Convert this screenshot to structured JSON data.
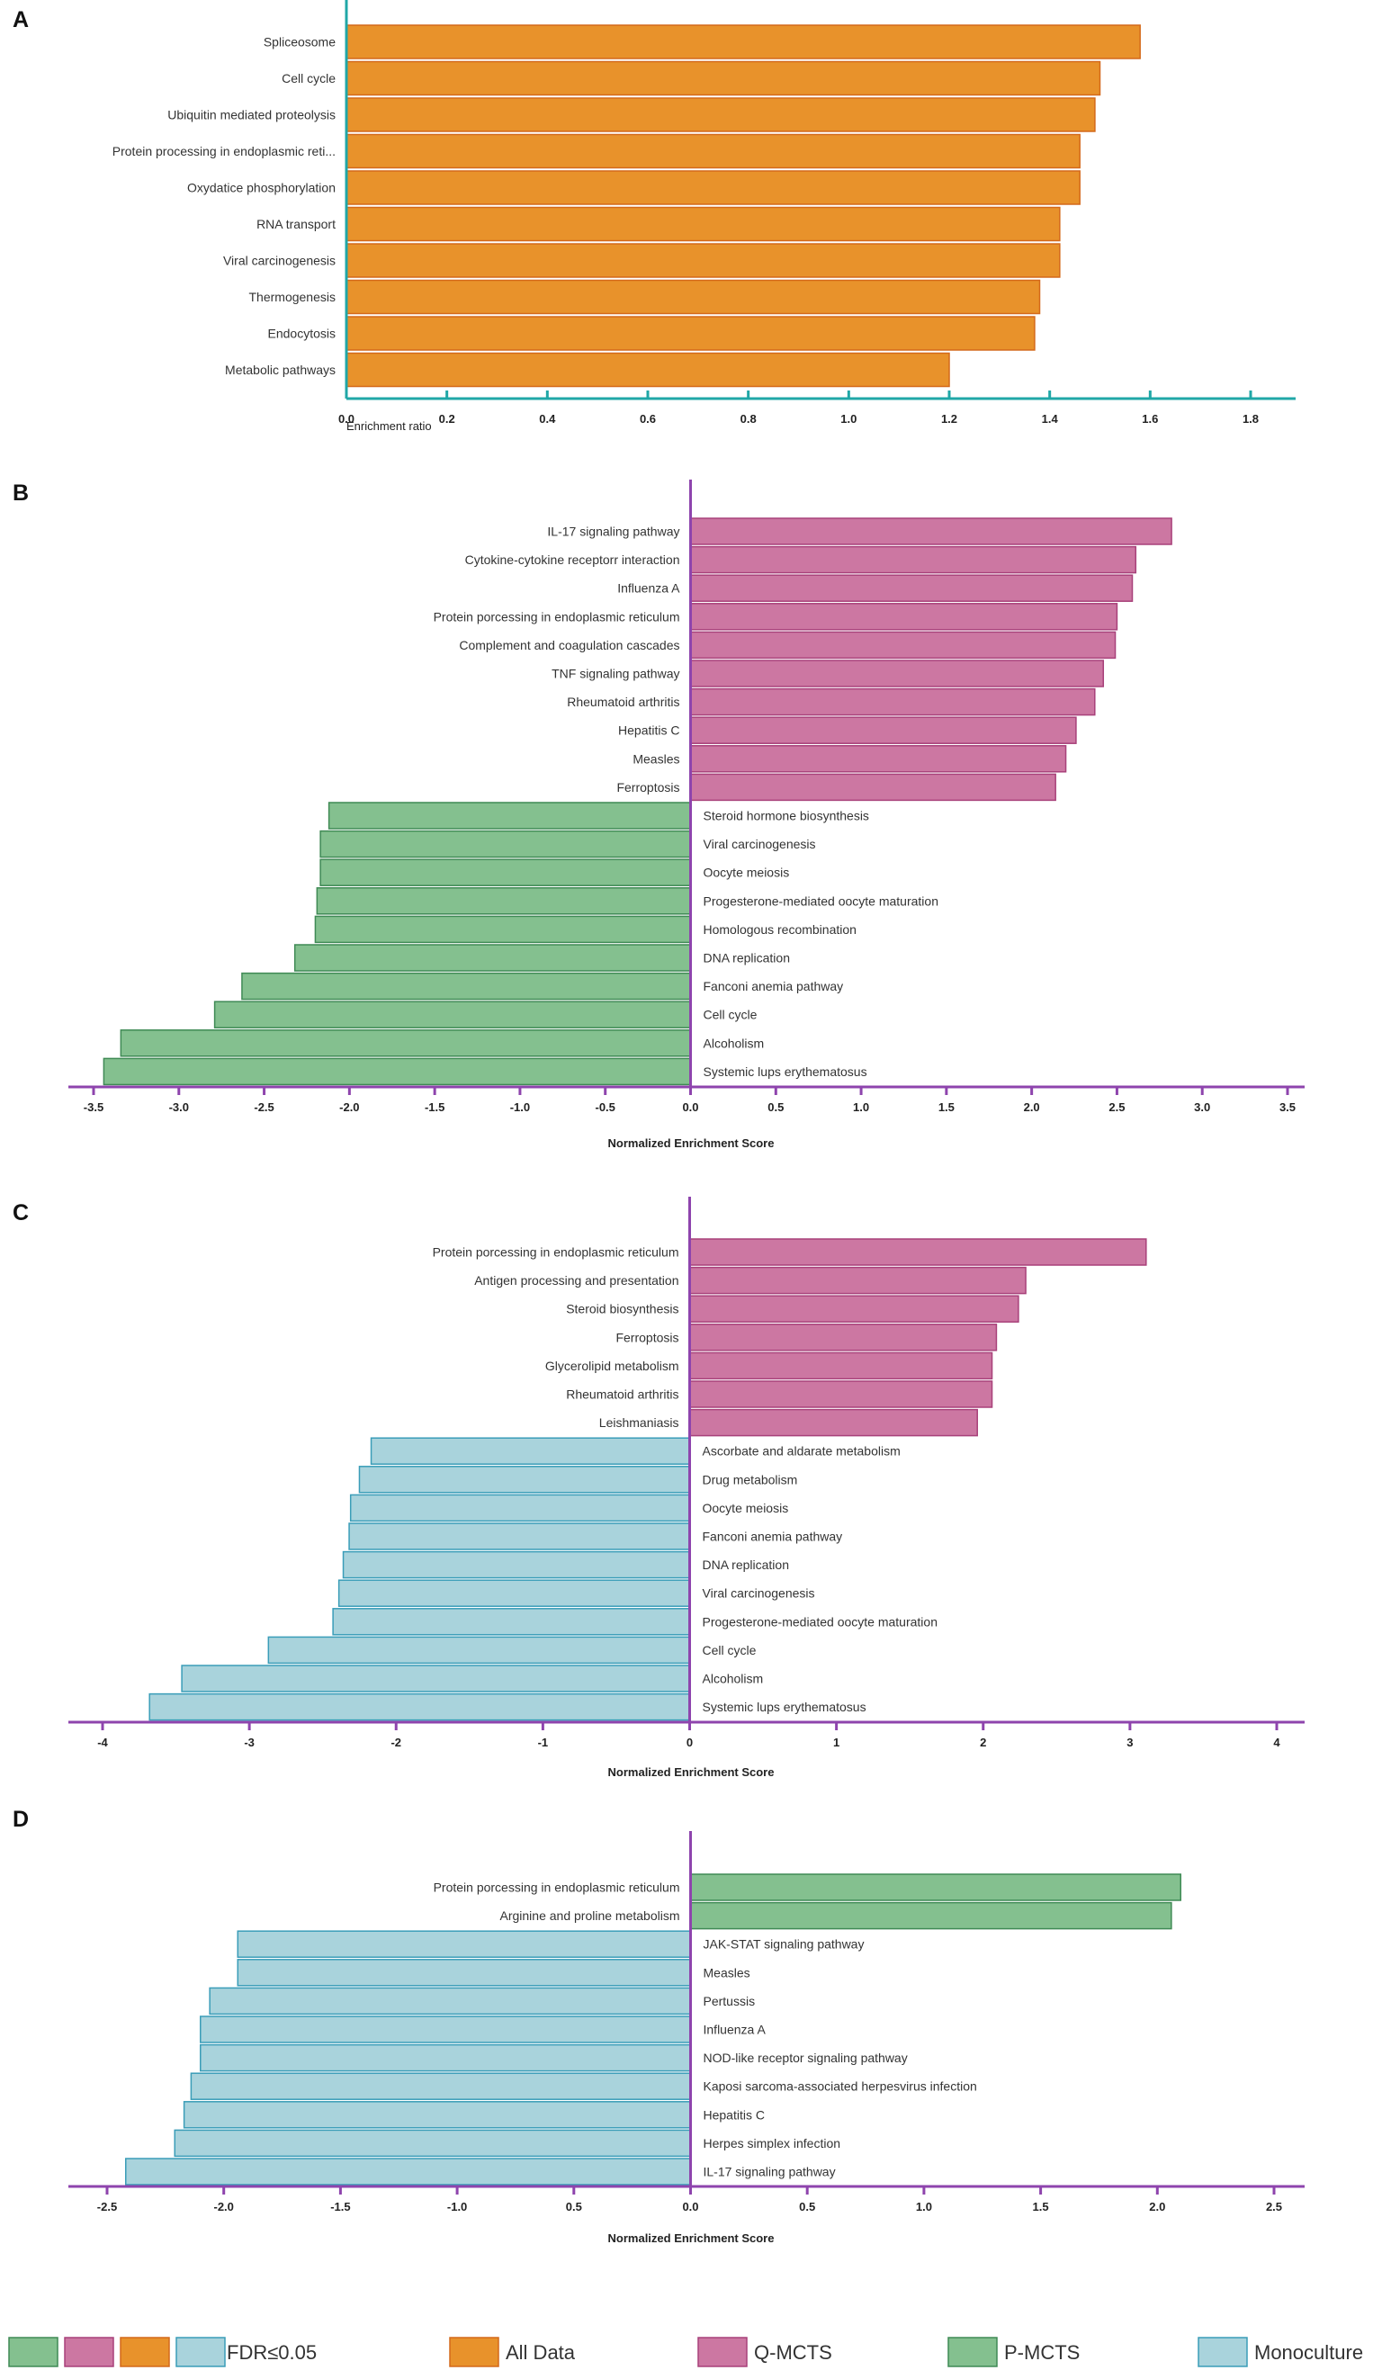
{
  "colors": {
    "all_data": "#E8922B",
    "all_data_stroke": "#D4691A",
    "q_mcts": "#CC77A2",
    "q_mcts_stroke": "#A8417A",
    "p_mcts": "#84C08F",
    "p_mcts_stroke": "#3F8A55",
    "mono": "#A9D3DC",
    "mono_stroke": "#3A9DB8",
    "axis_teal": "#20A7A7",
    "axis_purple": "#8E44AD"
  },
  "chart_data": [
    {
      "panel": "A",
      "type": "bar",
      "orientation": "horizontal",
      "xlabel": "Enrichment ratio",
      "xlim": [
        0.0,
        1.8
      ],
      "xticks": [
        "0.0",
        "0.2",
        "0.4",
        "0.6",
        "0.8",
        "1.0",
        "1.2",
        "1.4",
        "1.6",
        "1.8"
      ],
      "series": [
        {
          "name": "All Data",
          "categories": [
            "Spliceosome",
            "Cell cycle",
            "Ubiquitin mediated proteolysis",
            "Protein processing in endoplasmic reti...",
            "Oxydatice phosphorylation",
            "RNA transport",
            "Viral carcinogenesis",
            "Thermogenesis",
            "Endocytosis",
            "Metabolic pathways"
          ],
          "values": [
            1.58,
            1.5,
            1.49,
            1.46,
            1.46,
            1.42,
            1.42,
            1.38,
            1.37,
            1.2
          ]
        }
      ]
    },
    {
      "panel": "B",
      "type": "bar",
      "orientation": "horizontal",
      "xlabel": "Normalized Enrichment Score",
      "xlim": [
        -3.5,
        3.5
      ],
      "xticks": [
        "-3.5",
        "-3.0",
        "-2.5",
        "-2.0",
        "-1.5",
        "-1.0",
        "-0.5",
        "0.0",
        "0.5",
        "1.0",
        "1.5",
        "2.0",
        "2.5",
        "3.0",
        "3.5"
      ],
      "series": [
        {
          "name": "Q-MCTS",
          "categories": [
            "IL-17 signaling pathway",
            "Cytokine-cytokine receptorr interaction",
            "Influenza A",
            "Protein porcessing in endoplasmic reticulum",
            "Complement and coagulation cascades",
            "TNF signaling pathway",
            "Rheumatoid arthritis",
            "Hepatitis C",
            "Measles",
            "Ferroptosis"
          ],
          "values": [
            2.82,
            2.61,
            2.59,
            2.5,
            2.49,
            2.42,
            2.37,
            2.26,
            2.2,
            2.14
          ]
        },
        {
          "name": "P-MCTS",
          "categories": [
            "Steroid hormone biosynthesis",
            "Viral carcinogenesis",
            "Oocyte meiosis",
            "Progesterone-mediated oocyte maturation",
            "Homologous recombination",
            "DNA replication",
            "Fanconi anemia pathway",
            "Cell cycle",
            "Alcoholism",
            "Systemic lups erythematosus"
          ],
          "values": [
            -2.12,
            -2.17,
            -2.17,
            -2.19,
            -2.2,
            -2.32,
            -2.63,
            -2.79,
            -3.34,
            -3.44
          ]
        }
      ]
    },
    {
      "panel": "C",
      "type": "bar",
      "orientation": "horizontal",
      "xlabel": "Normalized Enrichment Score",
      "xlim": [
        -4,
        4
      ],
      "xticks": [
        "-4",
        "-3",
        "-2",
        "-1",
        "0",
        "1",
        "2",
        "3",
        "4"
      ],
      "series": [
        {
          "name": "Q-MCTS",
          "categories": [
            "Protein porcessing in endoplasmic reticulum",
            "Antigen processing and presentation",
            "Steroid biosynthesis",
            "Ferroptosis",
            "Glycerolipid metabolism",
            "Rheumatoid arthritis",
            "Leishmaniasis"
          ],
          "values": [
            3.11,
            2.29,
            2.24,
            2.09,
            2.06,
            2.06,
            1.96
          ]
        },
        {
          "name": "Monoculture",
          "categories": [
            "Ascorbate and aldarate metabolism",
            "Drug metabolism",
            "Oocyte meiosis",
            "Fanconi anemia pathway",
            "DNA replication",
            "Viral carcinogenesis",
            "Progesterone-mediated oocyte maturation",
            "Cell cycle",
            "Alcoholism",
            "Systemic lups erythematosus"
          ],
          "values": [
            -2.17,
            -2.25,
            -2.31,
            -2.32,
            -2.36,
            -2.39,
            -2.43,
            -2.87,
            -3.46,
            -3.68
          ]
        }
      ]
    },
    {
      "panel": "D",
      "type": "bar",
      "orientation": "horizontal",
      "xlabel": "Normalized Enrichment Score",
      "xlim": [
        -2.5,
        2.5
      ],
      "xticks": [
        "-2.5",
        "-2.0",
        "-1.5",
        "-1.0",
        "0.5",
        "0.0",
        "0.5",
        "1.0",
        "1.5",
        "2.0",
        "2.5"
      ],
      "series": [
        {
          "name": "P-MCTS",
          "categories": [
            "Protein porcessing in endoplasmic reticulum",
            "Arginine and proline metabolism"
          ],
          "values": [
            2.1,
            2.06
          ]
        },
        {
          "name": "Monoculture",
          "categories": [
            "JAK-STAT signaling pathway",
            "Measles",
            "Pertussis",
            "Influenza A",
            "NOD-like receptor signaling pathway",
            "Kaposi sarcoma-associated herpesvirus infection",
            "Hepatitis C",
            "Herpes simplex infection",
            "IL-17 signaling pathway"
          ],
          "values": [
            -1.94,
            -1.94,
            -2.06,
            -2.1,
            -2.1,
            -2.14,
            -2.17,
            -2.21,
            -2.42
          ]
        }
      ]
    }
  ],
  "legend": {
    "fdr_label": "FDR≤0.05",
    "items": [
      {
        "key": "all_data",
        "label": "All Data"
      },
      {
        "key": "q_mcts",
        "label": "Q-MCTS"
      },
      {
        "key": "p_mcts",
        "label": "P-MCTS"
      },
      {
        "key": "mono",
        "label": "Monoculture"
      }
    ]
  }
}
